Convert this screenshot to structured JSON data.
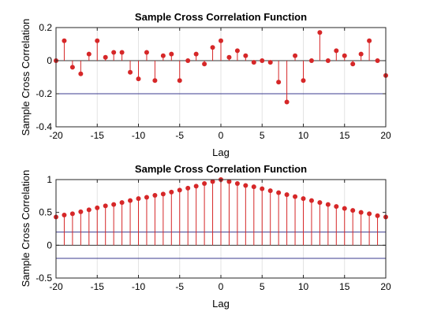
{
  "chart_data": [
    {
      "type": "stem",
      "title": "Sample Cross Correlation Function",
      "xlabel": "Lag",
      "ylabel": "Sample Cross Correlation",
      "xlim": [
        -20,
        20
      ],
      "ylim": [
        -0.4,
        0.2
      ],
      "xticks": [
        "-20",
        "-15",
        "-10",
        "-5",
        "0",
        "5",
        "10",
        "15",
        "20"
      ],
      "yticks": [
        "-0.4",
        "-0.2",
        "0",
        "0.2"
      ],
      "bounds": [
        0.2,
        -0.2
      ],
      "grid": "vertical",
      "x": [
        -20,
        -19,
        -18,
        -17,
        -16,
        -15,
        -14,
        -13,
        -12,
        -11,
        -10,
        -9,
        -8,
        -7,
        -6,
        -5,
        -4,
        -3,
        -2,
        -1,
        0,
        1,
        2,
        3,
        4,
        5,
        6,
        7,
        8,
        9,
        10,
        11,
        12,
        13,
        14,
        15,
        16,
        17,
        18,
        19,
        20
      ],
      "values": [
        0.0,
        0.12,
        -0.04,
        -0.08,
        0.04,
        0.12,
        0.02,
        0.05,
        0.05,
        -0.07,
        -0.11,
        0.05,
        -0.12,
        0.03,
        0.04,
        -0.12,
        0.0,
        0.04,
        -0.02,
        0.08,
        0.12,
        0.02,
        0.06,
        0.03,
        -0.01,
        0.0,
        -0.01,
        -0.13,
        -0.25,
        0.03,
        -0.12,
        0.0,
        0.17,
        0.0,
        0.06,
        0.03,
        -0.02,
        0.04,
        0.12,
        0.0,
        -0.09
      ]
    },
    {
      "type": "stem",
      "title": "Sample Cross Correlation Function",
      "xlabel": "Lag",
      "ylabel": "Sample Cross Correlation",
      "xlim": [
        -20,
        20
      ],
      "ylim": [
        -0.5,
        1
      ],
      "xticks": [
        "-20",
        "-15",
        "-10",
        "-5",
        "0",
        "5",
        "10",
        "15",
        "20"
      ],
      "yticks": [
        "-0.5",
        "0",
        "0.5",
        "1"
      ],
      "bounds": [
        0.2,
        -0.2
      ],
      "grid": "vertical",
      "x": [
        -20,
        -19,
        -18,
        -17,
        -16,
        -15,
        -14,
        -13,
        -12,
        -11,
        -10,
        -9,
        -8,
        -7,
        -6,
        -5,
        -4,
        -3,
        -2,
        -1,
        0,
        1,
        2,
        3,
        4,
        5,
        6,
        7,
        8,
        9,
        10,
        11,
        12,
        13,
        14,
        15,
        16,
        17,
        18,
        19,
        20
      ],
      "values": [
        0.43,
        0.46,
        0.48,
        0.51,
        0.54,
        0.57,
        0.6,
        0.62,
        0.65,
        0.68,
        0.71,
        0.73,
        0.76,
        0.78,
        0.81,
        0.84,
        0.87,
        0.9,
        0.94,
        0.97,
        1.0,
        0.97,
        0.94,
        0.91,
        0.89,
        0.86,
        0.83,
        0.8,
        0.77,
        0.74,
        0.71,
        0.68,
        0.65,
        0.62,
        0.59,
        0.56,
        0.53,
        0.5,
        0.48,
        0.45,
        0.43
      ]
    }
  ],
  "colors": {
    "stem": "#d62728",
    "bound": "#3b3b8f",
    "zero": "#333333",
    "grid": "#e3e3e3",
    "axis": "#262626"
  }
}
